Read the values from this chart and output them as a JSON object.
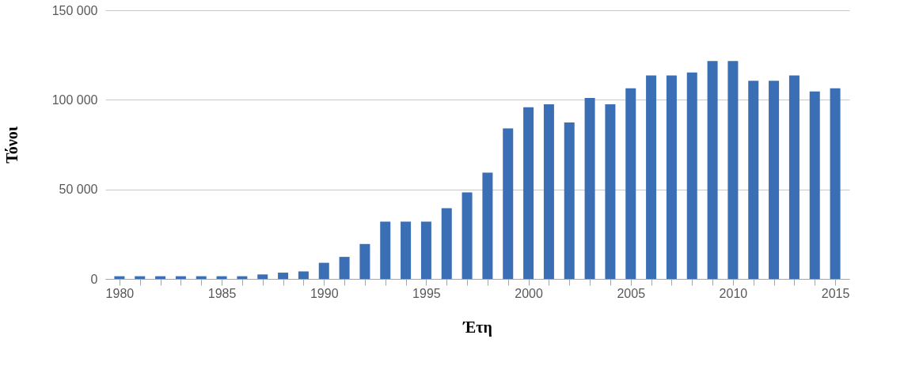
{
  "chart_data": {
    "type": "bar",
    "xlabel": "Έτη",
    "ylabel": "Τόνοι",
    "x": [
      1980,
      1981,
      1982,
      1983,
      1984,
      1985,
      1986,
      1987,
      1988,
      1989,
      1990,
      1991,
      1992,
      1993,
      1994,
      1995,
      1996,
      1997,
      1998,
      1999,
      2000,
      2001,
      2002,
      2003,
      2004,
      2005,
      2006,
      2007,
      2008,
      2009,
      2010,
      2011,
      2012,
      2013,
      2014,
      2015
    ],
    "values": [
      1500,
      1500,
      1500,
      1500,
      1500,
      1500,
      1500,
      2500,
      3500,
      4200,
      9000,
      12300,
      19500,
      32000,
      32000,
      32000,
      39500,
      48300,
      59300,
      84000,
      95800,
      97500,
      87300,
      101000,
      97500,
      106400,
      113600,
      113600,
      115300,
      121600,
      121600,
      110600,
      110600,
      113600,
      104700,
      106400
    ],
    "color": "#3a6eb5",
    "xlim": [
      1979.5,
      2015.5
    ],
    "xticks": [
      1980,
      {
        "value": 1981,
        "label": null
      },
      {
        "value": 1982,
        "label": null
      },
      {
        "value": 1983,
        "label": null
      },
      {
        "value": 1984,
        "label": null
      },
      1985,
      {
        "value": 1986,
        "label": null
      },
      {
        "value": 1987,
        "label": null
      },
      {
        "value": 1988,
        "label": null
      },
      {
        "value": 1989,
        "label": null
      },
      1990,
      {
        "value": 1991,
        "label": null
      },
      {
        "value": 1992,
        "label": null
      },
      {
        "value": 1993,
        "label": null
      },
      {
        "value": 1994,
        "label": null
      },
      1995,
      {
        "value": 1996,
        "label": null
      },
      {
        "value": 1997,
        "label": null
      },
      {
        "value": 1998,
        "label": null
      },
      {
        "value": 1999,
        "label": null
      },
      2000,
      {
        "value": 2001,
        "label": null
      },
      {
        "value": 2002,
        "label": null
      },
      {
        "value": 2003,
        "label": null
      },
      {
        "value": 2004,
        "label": null
      },
      2005,
      {
        "value": 2006,
        "label": null
      },
      {
        "value": 2007,
        "label": null
      },
      {
        "value": 2008,
        "label": null
      },
      {
        "value": 2009,
        "label": null
      },
      2010,
      {
        "value": 2011,
        "label": null
      },
      {
        "value": 2012,
        "label": null
      },
      {
        "value": 2013,
        "label": null
      },
      {
        "value": 2014,
        "label": null
      },
      2015
    ],
    "ylim": [
      0,
      150000
    ],
    "yticks": [
      0,
      {
        "value": 50000,
        "label": "50 000"
      },
      {
        "value": 100000,
        "label": "100 000"
      },
      {
        "value": 150000,
        "label": "150 000"
      }
    ],
    "grid": "y"
  }
}
